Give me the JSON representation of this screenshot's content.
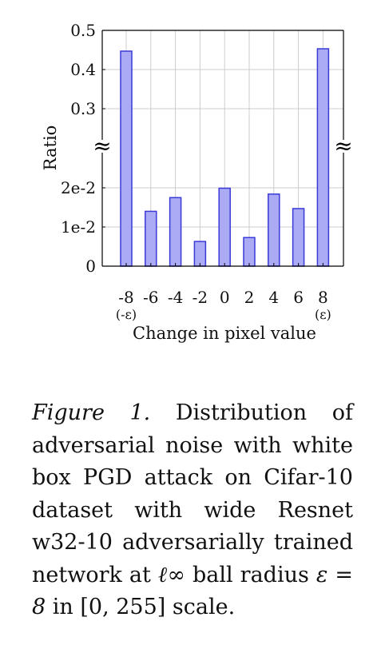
{
  "chart_data": {
    "type": "bar",
    "categories": [
      "-8",
      "-6",
      "-4",
      "-2",
      "0",
      "2",
      "4",
      "6",
      "8"
    ],
    "category_sublabels": {
      "-8": "(-ε)",
      "8": "(ε)"
    },
    "values": [
      0.447,
      0.014,
      0.0175,
      0.0063,
      0.0199,
      0.0073,
      0.0184,
      0.0147,
      0.453
    ],
    "xlabel": "Change in pixel value",
    "ylabel": "Ratio",
    "axis_break": true,
    "break_symbol": "≈",
    "y_lower": {
      "range": [
        0,
        0.02
      ],
      "ticks": [
        0,
        0.01,
        0.02
      ],
      "tick_labels": [
        "0",
        "1e-2",
        "2e-2"
      ]
    },
    "y_upper": {
      "range": [
        0.3,
        0.5
      ],
      "ticks": [
        0.3,
        0.4,
        0.5
      ],
      "tick_labels": [
        "0.3",
        "0.4",
        "0.5"
      ]
    },
    "grid": true,
    "colors": {
      "bar_fill": "#aaaaf5",
      "bar_stroke": "#3a3ad8",
      "grid": "#cccccc",
      "axis": "#000000"
    }
  },
  "caption": {
    "label": "Figure 1.",
    "text_1": " Distribution of adversarial noise with white box PGD attack on Cifar-10 dataset with wide Resnet w32-10 adversarially trained network at ",
    "math_1": "ℓ∞",
    "text_2": " ball radius ",
    "math_2": "ε = 8",
    "text_3": " in [0, 255] scale."
  }
}
